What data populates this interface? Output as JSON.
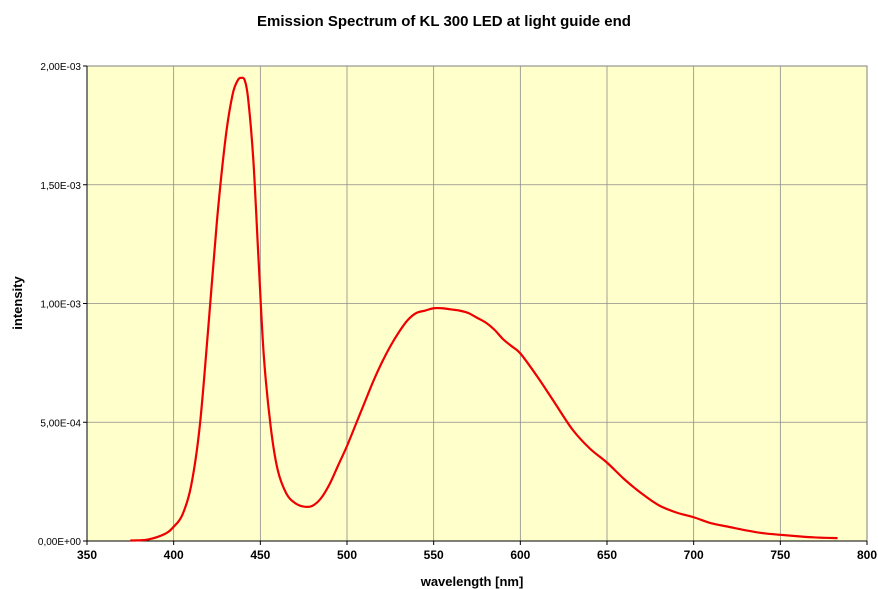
{
  "chart_data": {
    "type": "line",
    "title": "Emission Spectrum of KL 300 LED at light guide end",
    "xlabel": "wavelength [nm]",
    "ylabel": "intensity",
    "xlim": [
      350,
      800
    ],
    "ylim": [
      0,
      0.002
    ],
    "x_ticks": [
      350,
      400,
      450,
      500,
      550,
      600,
      650,
      700,
      750,
      800
    ],
    "x_tick_labels": [
      "350",
      "400",
      "450",
      "500",
      "550",
      "600",
      "650",
      "700",
      "750",
      "800"
    ],
    "y_ticks": [
      0,
      0.0005,
      0.001,
      0.0015,
      0.002
    ],
    "y_tick_labels": [
      "0,00E+00",
      "5,00E-04",
      "1,00E-03",
      "1,50E-03",
      "2,00E-03"
    ],
    "grid": true,
    "plot_background": "#ffffcc",
    "series": [
      {
        "color": "#ee0000",
        "x": [
          375,
          385,
          395,
          400,
          405,
          410,
          415,
          420,
          425,
          430,
          434,
          437,
          439,
          441,
          443,
          446,
          449,
          452,
          456,
          460,
          465,
          470,
          475,
          480,
          485,
          490,
          495,
          500,
          505,
          510,
          515,
          520,
          525,
          530,
          535,
          540,
          545,
          550,
          555,
          560,
          565,
          570,
          575,
          580,
          585,
          590,
          595,
          600,
          610,
          620,
          630,
          640,
          650,
          660,
          670,
          680,
          690,
          700,
          710,
          720,
          730,
          740,
          750,
          760,
          770,
          783
        ],
        "y": [
          2e-06,
          6e-06,
          3e-05,
          6e-05,
          0.00011,
          0.00023,
          0.00048,
          0.0009,
          0.00135,
          0.0017,
          0.00188,
          0.00194,
          0.00195,
          0.00194,
          0.00186,
          0.0016,
          0.00118,
          0.00078,
          0.00048,
          0.0003,
          0.0002,
          0.00016,
          0.000145,
          0.000148,
          0.00018,
          0.00024,
          0.00032,
          0.0004,
          0.00049,
          0.00058,
          0.00067,
          0.00075,
          0.00082,
          0.00088,
          0.00093,
          0.00096,
          0.00097,
          0.00098,
          0.00098,
          0.000975,
          0.00097,
          0.00096,
          0.00094,
          0.00092,
          0.00089,
          0.00085,
          0.00082,
          0.00079,
          0.00069,
          0.00058,
          0.00047,
          0.00039,
          0.00033,
          0.00026,
          0.0002,
          0.00015,
          0.00012,
          0.0001,
          7.5e-05,
          6e-05,
          4.5e-05,
          3.3e-05,
          2.6e-05,
          2e-05,
          1.5e-05,
          1.2e-05
        ]
      }
    ]
  }
}
